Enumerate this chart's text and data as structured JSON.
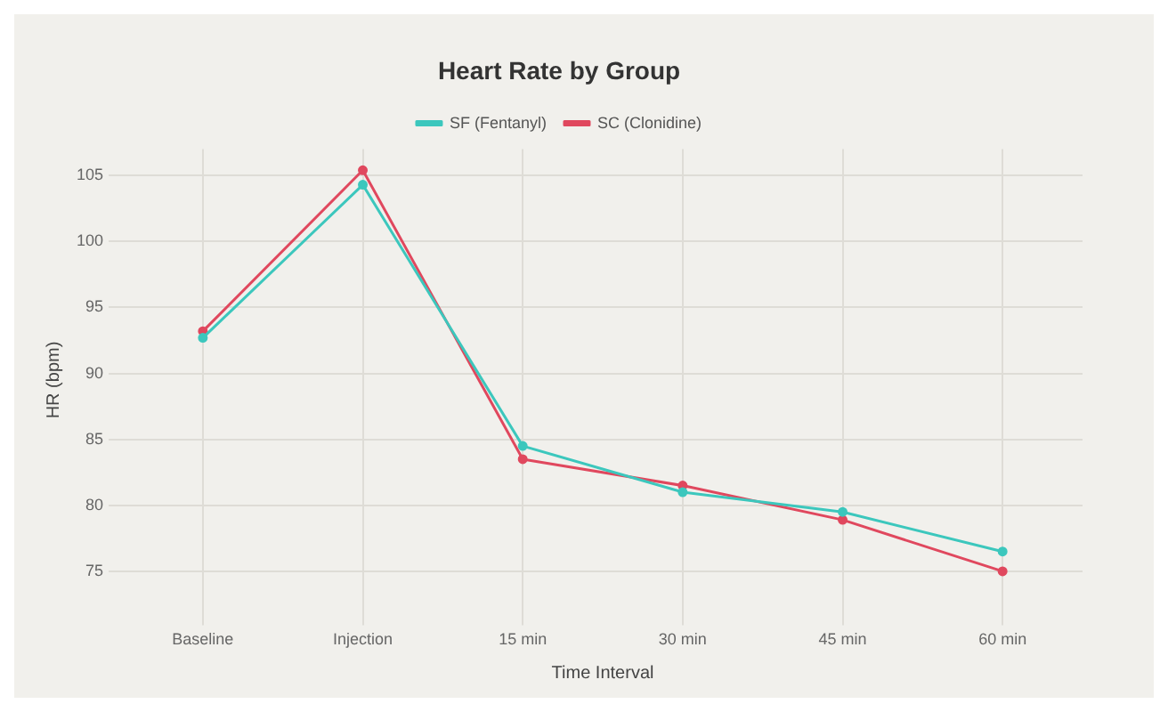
{
  "chart_data": {
    "type": "line",
    "title": "Heart Rate by Group",
    "xlabel": "Time Interval",
    "ylabel": "HR (bpm)",
    "categories": [
      "Baseline",
      "Injection",
      "15 min",
      "30 min",
      "45 min",
      "60 min"
    ],
    "series": [
      {
        "name": "SF (Fentanyl)",
        "color": "#3cc7bd",
        "values": [
          92.7,
          104.3,
          84.5,
          81.0,
          79.5,
          76.5
        ]
      },
      {
        "name": "SC (Clonidine)",
        "color": "#e0485e",
        "values": [
          93.2,
          105.4,
          83.5,
          81.5,
          78.9,
          75.0
        ]
      }
    ],
    "ylim": [
      72,
      107
    ],
    "yticks": [
      75,
      80,
      85,
      90,
      95,
      100,
      105
    ],
    "grid": true,
    "legend": "top",
    "marker": "circle",
    "line_style": "solid"
  }
}
